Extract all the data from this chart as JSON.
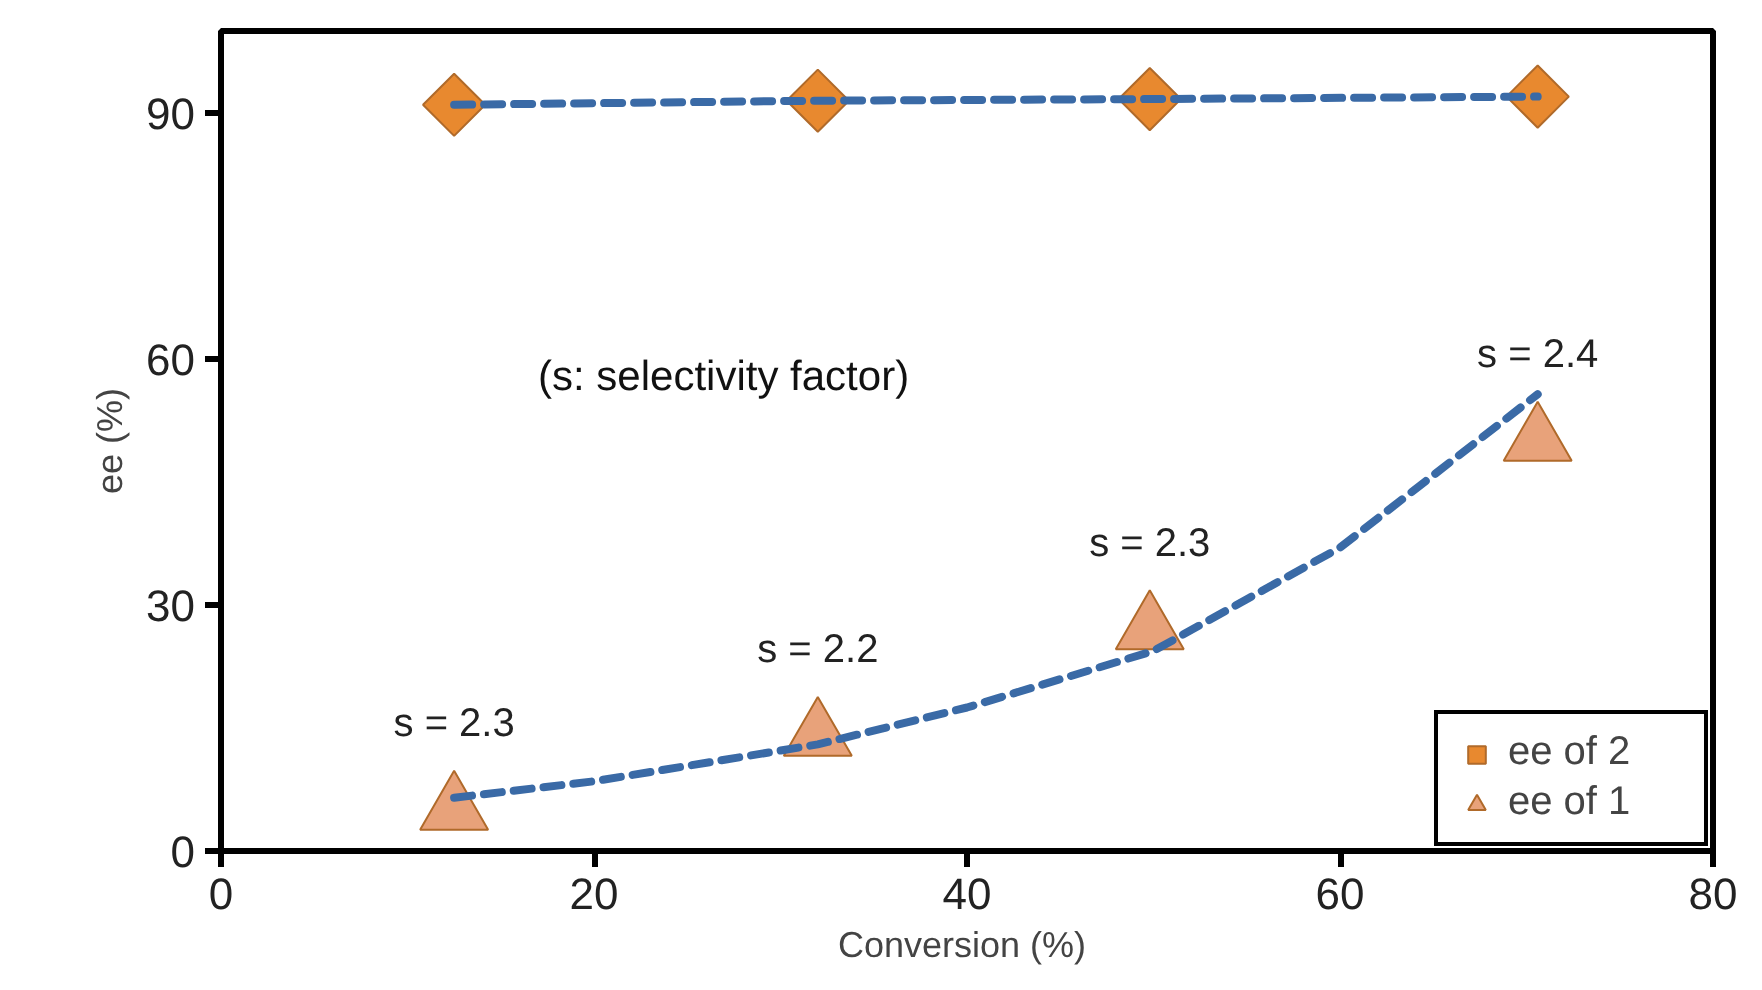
{
  "chart_data": {
    "type": "scatter",
    "xlabel": "Conversion  (%)",
    "ylabel": "ee (%)",
    "xlim": [
      0,
      80
    ],
    "xticks": [
      0,
      20,
      40,
      60,
      80
    ],
    "ylim": [
      0,
      100
    ],
    "yticks": [
      0,
      30,
      60,
      90
    ],
    "grid": false,
    "legend": "bottom right",
    "series": [
      {
        "type": "line",
        "color": "#3a6aa6",
        "line_style": "dashed",
        "marker": "none",
        "x": [
          12.5,
          32,
          50,
          70.6
        ],
        "values": [
          91,
          91.5,
          91.7,
          92
        ]
      },
      {
        "type": "line",
        "color": "#3a6aa6",
        "line_style": "dashed",
        "marker": "none",
        "x": [
          12.5,
          20,
          32,
          40,
          50,
          60,
          70.6
        ],
        "values": [
          6.5,
          8.5,
          13,
          17.5,
          24.4,
          37,
          55.7
        ]
      },
      {
        "name": "ee of 2",
        "marker": "diamond",
        "color": "#e8892f",
        "x": [
          12.5,
          32,
          49.8,
          70.6
        ],
        "values": [
          91,
          91.5,
          91.7,
          92
        ]
      },
      {
        "name": "ee of 1",
        "marker": "triangle",
        "color": "#e8a27a",
        "x": [
          12.5,
          32,
          49.8,
          70.6
        ],
        "values": [
          5,
          14,
          27,
          50
        ]
      }
    ],
    "annotations": [
      {
        "text": "s = 2.3",
        "x": 12.5,
        "y": 5
      },
      {
        "text": "s = 2.2",
        "x": 32,
        "y": 14
      },
      {
        "text": "s = 2.3",
        "x": 49.8,
        "y": 27
      },
      {
        "text": "s = 2.4",
        "x": 70.6,
        "y": 50
      },
      "(s: selectivity factor)"
    ]
  }
}
